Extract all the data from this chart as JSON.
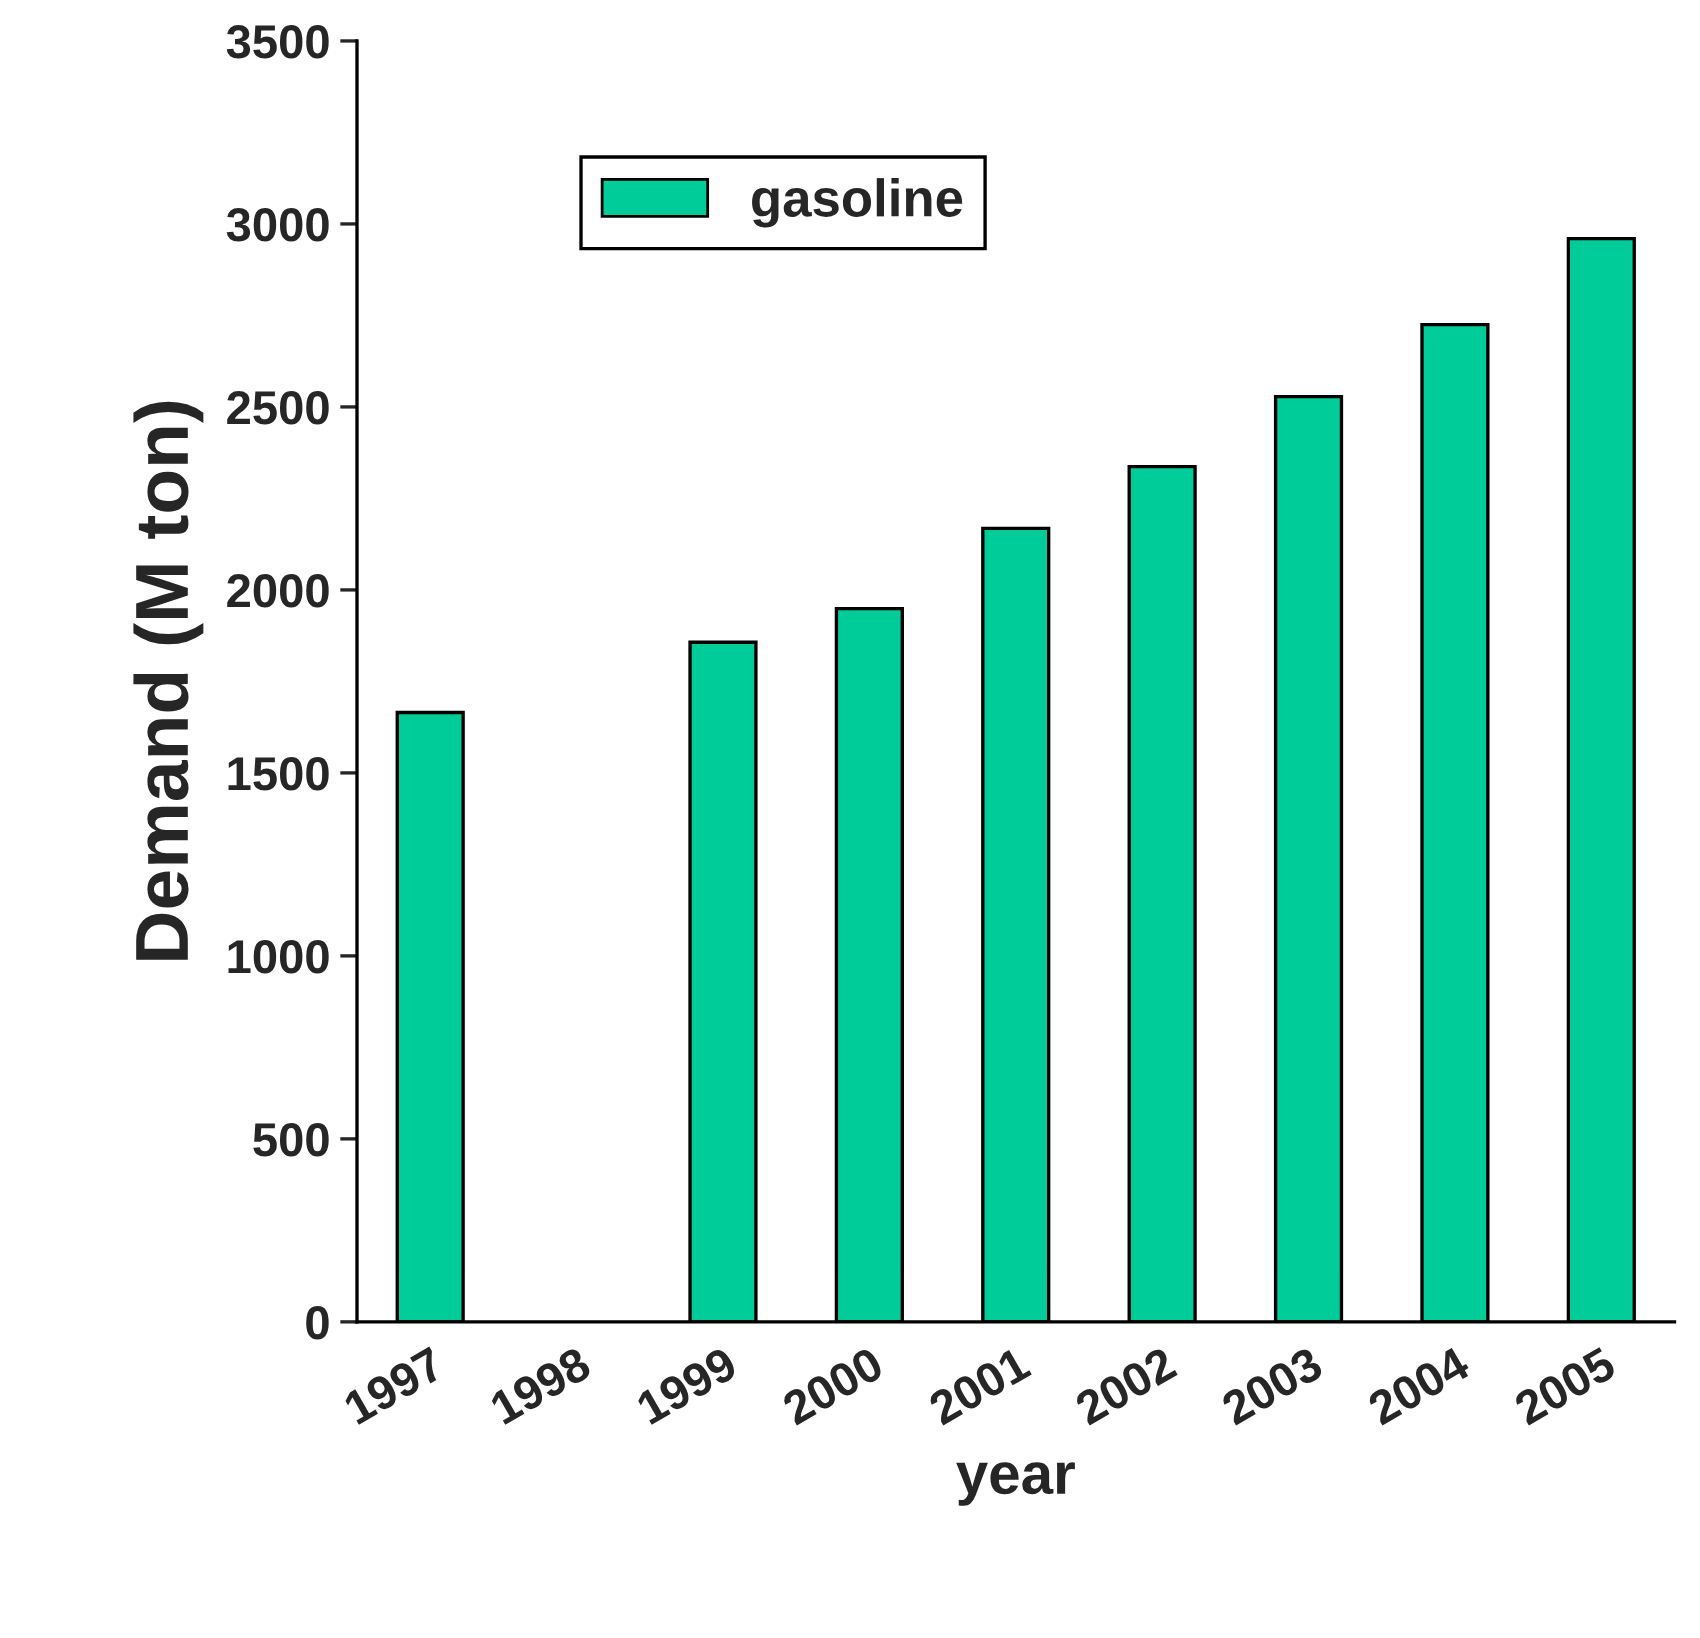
{
  "chart_data": {
    "type": "bar",
    "xlabel": "year",
    "ylabel": "Demand (M ton)",
    "categories": [
      "1997",
      "1998",
      "1999",
      "2000",
      "2001",
      "2002",
      "2003",
      "2004",
      "2005"
    ],
    "series": [
      {
        "name": "gasoline",
        "color": "#00cc99",
        "values": [
          1665,
          null,
          1857,
          1949,
          2168,
          2337,
          2528,
          2725,
          2960
        ]
      }
    ],
    "ylim": [
      0,
      3500
    ],
    "yticks": [
      0,
      500,
      1000,
      1500,
      2000,
      2500,
      3000,
      3500
    ],
    "grid": false,
    "legend": "top left"
  }
}
